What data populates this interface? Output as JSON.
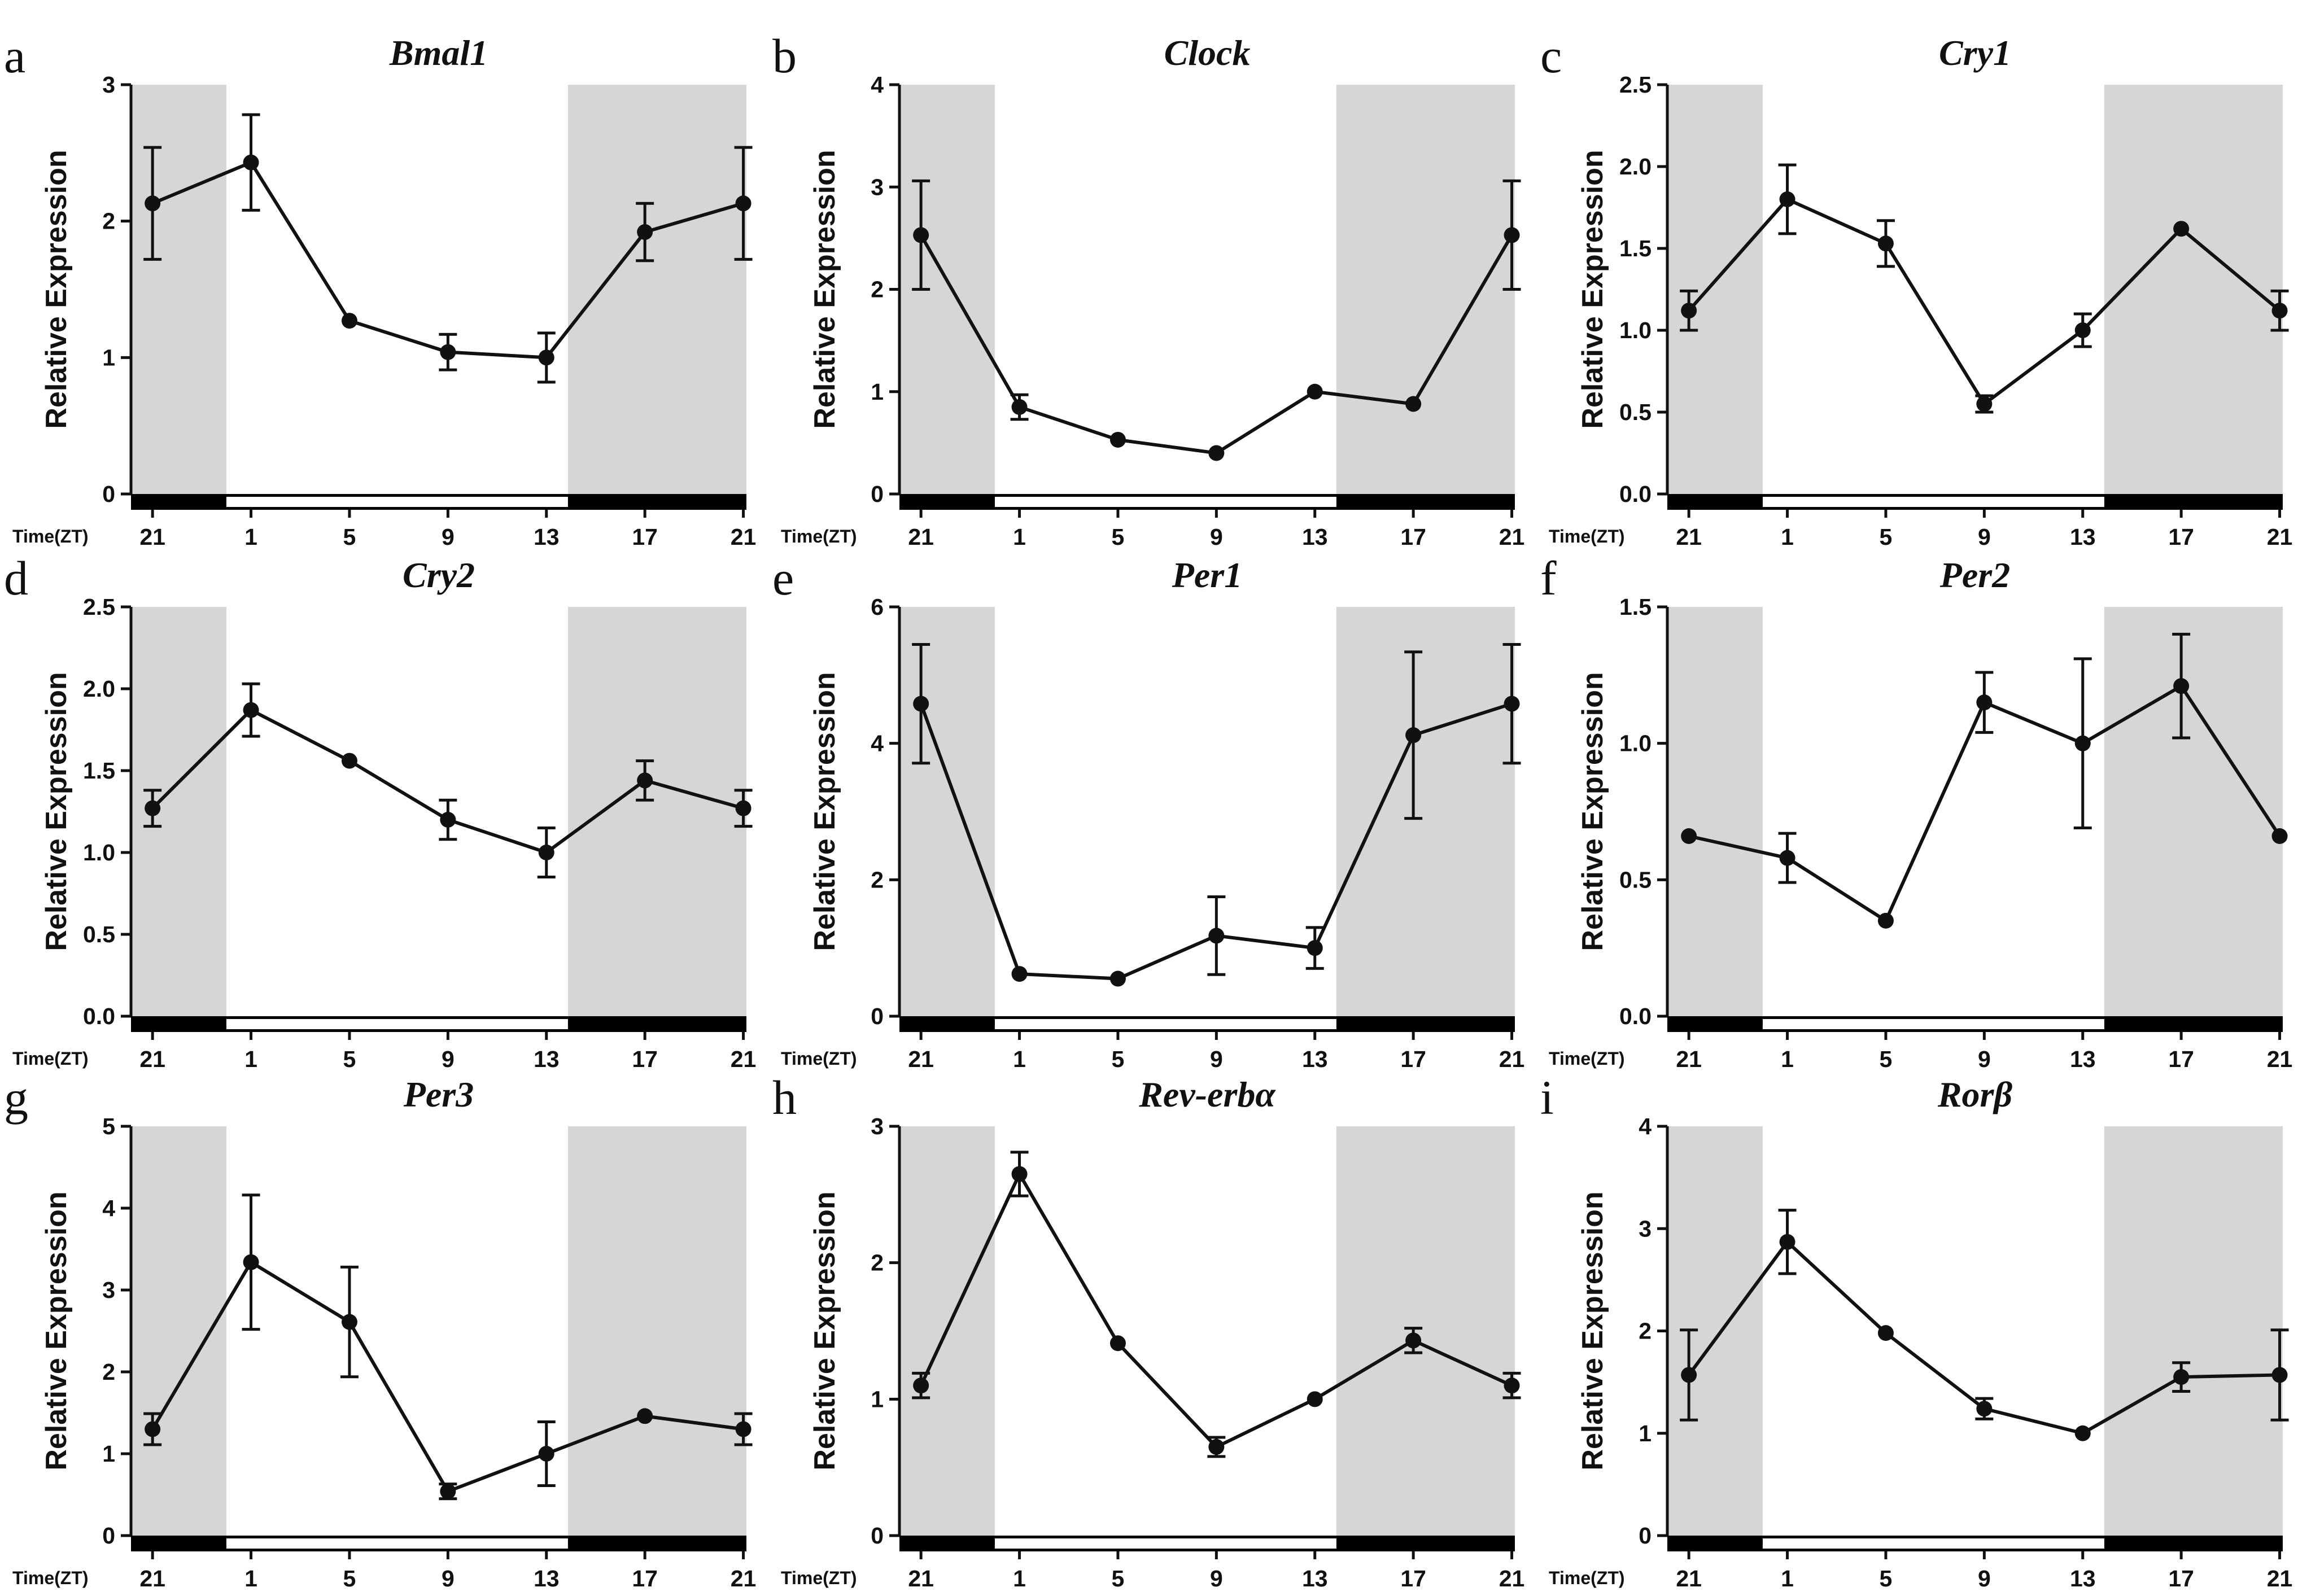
{
  "figure": {
    "time_axis_label": "Time(ZT)",
    "y_axis_label": "Relative Expression"
  },
  "chart_data": [
    {
      "panel": "a",
      "title": "Bmal1",
      "type": "line",
      "xlabel": "Time(ZT)",
      "ylabel": "Relative Expression",
      "x_ticks": [
        "21",
        "1",
        "5",
        "9",
        "13",
        "17",
        "21"
      ],
      "ylim": [
        0,
        3
      ],
      "y_ticks": [
        "0",
        "1",
        "2",
        "3"
      ],
      "dark_phase": [
        "21 (leading)",
        "17",
        "21"
      ],
      "light_phase": [
        "1",
        "5",
        "9",
        "13"
      ],
      "values": [
        2.13,
        2.43,
        1.27,
        1.04,
        1.0,
        1.92,
        2.13
      ],
      "errors": [
        0.41,
        0.35,
        0.0,
        0.13,
        0.18,
        0.21,
        0.41
      ]
    },
    {
      "panel": "b",
      "title": "Clock",
      "type": "line",
      "xlabel": "Time(ZT)",
      "ylabel": "Relative Expression",
      "x_ticks": [
        "21",
        "1",
        "5",
        "9",
        "13",
        "17",
        "21"
      ],
      "ylim": [
        0,
        4
      ],
      "y_ticks": [
        "0",
        "1",
        "2",
        "3",
        "4"
      ],
      "values": [
        2.53,
        0.85,
        0.53,
        0.4,
        1.0,
        0.88,
        2.53
      ],
      "errors": [
        0.53,
        0.12,
        0.0,
        0.0,
        0.0,
        0.0,
        0.53
      ]
    },
    {
      "panel": "c",
      "title": "Cry1",
      "type": "line",
      "xlabel": "Time(ZT)",
      "ylabel": "Relative Expression",
      "x_ticks": [
        "21",
        "1",
        "5",
        "9",
        "13",
        "17",
        "21"
      ],
      "ylim": [
        0,
        2.5
      ],
      "y_ticks": [
        "0.0",
        "0.5",
        "1.0",
        "1.5",
        "2.0",
        "2.5"
      ],
      "values": [
        1.12,
        1.8,
        1.53,
        0.55,
        1.0,
        1.62,
        1.12
      ],
      "errors": [
        0.12,
        0.21,
        0.14,
        0.05,
        0.1,
        0.0,
        0.12
      ]
    },
    {
      "panel": "d",
      "title": "Cry2",
      "type": "line",
      "xlabel": "Time(ZT)",
      "ylabel": "Relative Expression",
      "x_ticks": [
        "21",
        "1",
        "5",
        "9",
        "13",
        "17",
        "21"
      ],
      "ylim": [
        0,
        2.5
      ],
      "y_ticks": [
        "0.0",
        "0.5",
        "1.0",
        "1.5",
        "2.0",
        "2.5"
      ],
      "values": [
        1.27,
        1.87,
        1.56,
        1.2,
        1.0,
        1.44,
        1.27
      ],
      "errors": [
        0.11,
        0.16,
        0.0,
        0.12,
        0.15,
        0.12,
        0.11
      ]
    },
    {
      "panel": "e",
      "title": "Per1",
      "type": "line",
      "xlabel": "Time(ZT)",
      "ylabel": "Relative Expression",
      "x_ticks": [
        "21",
        "1",
        "5",
        "9",
        "13",
        "17",
        "21"
      ],
      "ylim": [
        0,
        6
      ],
      "y_ticks": [
        "0",
        "2",
        "4",
        "6"
      ],
      "values": [
        4.58,
        0.62,
        0.55,
        1.18,
        1.0,
        4.12,
        4.58
      ],
      "errors": [
        0.87,
        0.0,
        0.0,
        0.57,
        0.3,
        1.22,
        0.87
      ]
    },
    {
      "panel": "f",
      "title": "Per2",
      "type": "line",
      "xlabel": "Time(ZT)",
      "ylabel": "Relative Expression",
      "x_ticks": [
        "21",
        "1",
        "5",
        "9",
        "13",
        "17",
        "21"
      ],
      "ylim": [
        0,
        1.5
      ],
      "y_ticks": [
        "0.0",
        "0.5",
        "1.0",
        "1.5"
      ],
      "values": [
        0.66,
        0.58,
        0.35,
        1.15,
        1.0,
        1.21,
        0.66
      ],
      "errors": [
        0.0,
        0.09,
        0.0,
        0.11,
        0.31,
        0.19,
        0.0
      ]
    },
    {
      "panel": "g",
      "title": "Per3",
      "type": "line",
      "xlabel": "Time(ZT)",
      "ylabel": "Relative Expression",
      "x_ticks": [
        "21",
        "1",
        "5",
        "9",
        "13",
        "17",
        "21"
      ],
      "ylim": [
        0,
        5
      ],
      "y_ticks": [
        "0",
        "1",
        "2",
        "3",
        "4",
        "5"
      ],
      "values": [
        1.3,
        3.34,
        2.61,
        0.54,
        1.0,
        1.46,
        1.3
      ],
      "errors": [
        0.19,
        0.82,
        0.67,
        0.09,
        0.39,
        0.0,
        0.19
      ]
    },
    {
      "panel": "h",
      "title": "Rev-erbα",
      "type": "line",
      "xlabel": "Time(ZT)",
      "ylabel": "Relative Expression",
      "x_ticks": [
        "21",
        "1",
        "5",
        "9",
        "13",
        "17",
        "21"
      ],
      "ylim": [
        0,
        3
      ],
      "y_ticks": [
        "0",
        "1",
        "2",
        "3"
      ],
      "values": [
        1.1,
        2.65,
        1.41,
        0.65,
        1.0,
        1.43,
        1.1
      ],
      "errors": [
        0.09,
        0.16,
        0.0,
        0.07,
        0.0,
        0.09,
        0.09
      ]
    },
    {
      "panel": "i",
      "title": "Rorβ",
      "type": "line",
      "xlabel": "Time(ZT)",
      "ylabel": "Relative Expression",
      "x_ticks": [
        "21",
        "1",
        "5",
        "9",
        "13",
        "17",
        "21"
      ],
      "ylim": [
        0,
        4
      ],
      "y_ticks": [
        "0",
        "1",
        "2",
        "3",
        "4"
      ],
      "values": [
        1.57,
        2.87,
        1.98,
        1.24,
        1.0,
        1.55,
        1.57
      ],
      "errors": [
        0.44,
        0.31,
        0.0,
        0.1,
        0.0,
        0.14,
        0.44
      ]
    }
  ]
}
